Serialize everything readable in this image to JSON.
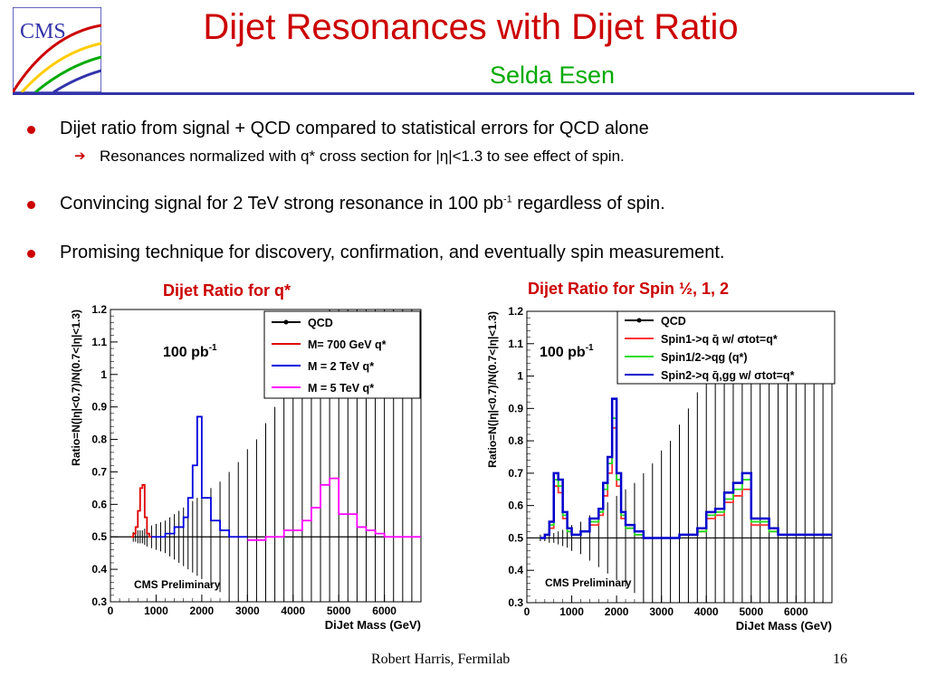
{
  "slide": {
    "logo_text": "CMS",
    "title": "Dijet Resonances with Dijet Ratio",
    "subtitle": "Selda Esen",
    "footer_author": "Robert Harris, Fermilab",
    "page_number": "16"
  },
  "bullets": [
    {
      "text": "Dijet ratio from signal + QCD compared to statistical errors for QCD alone"
    },
    {
      "text_before": "Convincing signal for 2 TeV strong resonance in 100 pb",
      "sup": "-1",
      "text_after": " regardless of spin."
    },
    {
      "text": "Promising technique for discovery, confirmation, and eventually spin measurement."
    }
  ],
  "sub_bullets": [
    {
      "text": "Resonances normalized with q* cross section for |η|<1.3 to see effect of spin."
    }
  ],
  "colors": {
    "title": "#cc0000",
    "subtitle": "#00aa00",
    "rule": "#3333aa",
    "bullet": "#cc0000"
  },
  "chart_data": [
    {
      "type": "line",
      "title": "Dijet Ratio for q*",
      "xlabel": "DiJet Mass (GeV)",
      "ylabel": "Ratio=N(|η|<0.7)/N(0.7<|η|<1.3)",
      "annotation": "100 pb",
      "annotation_sup": "-1",
      "watermark": "CMS Preliminary",
      "xlim": [
        0,
        6800
      ],
      "ylim": [
        0.3,
        1.2
      ],
      "x_ticks": [
        0,
        1000,
        2000,
        3000,
        4000,
        5000,
        6000
      ],
      "y_ticks": [
        0.3,
        0.4,
        0.5,
        0.6,
        0.7,
        0.8,
        0.9,
        1,
        1.1,
        1.2
      ],
      "y_tick_labels": [
        "0.3",
        "0.4",
        "0.5",
        "0.6",
        "0.7",
        "0.8",
        "0.9",
        "1",
        "1.1",
        "1.2"
      ],
      "legend_position": "top-right",
      "qcd": {
        "name": "QCD",
        "color": "#000000",
        "value": 0.5,
        "error_points": [
          [
            500,
            0.015
          ],
          [
            550,
            0.015
          ],
          [
            600,
            0.02
          ],
          [
            650,
            0.02
          ],
          [
            700,
            0.02
          ],
          [
            750,
            0.025
          ],
          [
            800,
            0.03
          ],
          [
            900,
            0.035
          ],
          [
            1000,
            0.04
          ],
          [
            1100,
            0.045
          ],
          [
            1200,
            0.05
          ],
          [
            1300,
            0.06
          ],
          [
            1400,
            0.07
          ],
          [
            1500,
            0.08
          ],
          [
            1600,
            0.09
          ],
          [
            1700,
            0.1
          ],
          [
            1800,
            0.11
          ],
          [
            1900,
            0.12
          ],
          [
            2000,
            0.13
          ],
          [
            2200,
            0.15
          ],
          [
            2400,
            0.17
          ],
          [
            2600,
            0.2
          ],
          [
            2800,
            0.23
          ],
          [
            3000,
            0.27
          ],
          [
            3200,
            0.3
          ],
          [
            3400,
            0.35
          ],
          [
            3600,
            0.4
          ],
          [
            3800,
            0.45
          ],
          [
            4000,
            0.5
          ],
          [
            4200,
            0.55
          ],
          [
            4400,
            0.6
          ],
          [
            4600,
            0.65
          ],
          [
            4800,
            0.7
          ],
          [
            5000,
            0.7
          ],
          [
            5200,
            0.7
          ],
          [
            5400,
            0.7
          ],
          [
            5600,
            0.7
          ],
          [
            5800,
            0.7
          ],
          [
            6000,
            0.7
          ],
          [
            6200,
            0.7
          ],
          [
            6400,
            0.7
          ],
          [
            6600,
            0.7
          ]
        ]
      },
      "series": [
        {
          "name": "M= 700 GeV q*",
          "color": "#dd0000",
          "edges": [
            450,
            500,
            550,
            600,
            650,
            700,
            750,
            800,
            850,
            900
          ],
          "values": [
            0.5,
            0.51,
            0.53,
            0.58,
            0.65,
            0.66,
            0.56,
            0.51,
            0.5
          ]
        },
        {
          "name": "M = 2 TeV q*",
          "color": "#0000dd",
          "edges": [
            900,
            1200,
            1400,
            1600,
            1700,
            1800,
            1900,
            2000,
            2200,
            2400,
            2600,
            2800,
            3000
          ],
          "values": [
            0.5,
            0.51,
            0.53,
            0.56,
            0.62,
            0.72,
            0.87,
            0.62,
            0.55,
            0.52,
            0.5,
            0.5
          ]
        },
        {
          "name": "M = 5 TeV q*",
          "color": "#ff00ff",
          "edges": [
            3000,
            3400,
            3800,
            4000,
            4200,
            4400,
            4600,
            4800,
            5000,
            5400,
            5600,
            5800,
            6000,
            6800
          ],
          "values": [
            0.49,
            0.5,
            0.52,
            0.52,
            0.55,
            0.59,
            0.66,
            0.68,
            0.57,
            0.53,
            0.52,
            0.51,
            0.5
          ]
        }
      ]
    },
    {
      "type": "line",
      "title": "Dijet Ratio for Spin ½, 1, 2",
      "xlabel": "DiJet Mass (GeV)",
      "ylabel": "Ratio=N(|η|<0.7)/N(0.7<|η|<1.3)",
      "annotation": "100 pb",
      "annotation_sup": "-1",
      "watermark": "CMS Preliminary",
      "xlim": [
        0,
        6800
      ],
      "ylim": [
        0.3,
        1.2
      ],
      "x_ticks": [
        0,
        1000,
        2000,
        3000,
        4000,
        5000,
        6000
      ],
      "y_ticks": [
        0.3,
        0.4,
        0.5,
        0.6,
        0.7,
        0.8,
        0.9,
        1,
        1.1,
        1.2
      ],
      "y_tick_labels": [
        "0.3",
        "0.4",
        "0.5",
        "0.6",
        "0.7",
        "0.8",
        "0.9",
        "1",
        "1.1",
        "1.2"
      ],
      "legend_position": "top-right",
      "qcd": {
        "name": "QCD",
        "color": "#000000",
        "value": 0.5,
        "error_points": [
          [
            300,
            0.01
          ],
          [
            400,
            0.01
          ],
          [
            500,
            0.015
          ],
          [
            600,
            0.015
          ],
          [
            700,
            0.02
          ],
          [
            800,
            0.025
          ],
          [
            900,
            0.03
          ],
          [
            1000,
            0.04
          ],
          [
            1200,
            0.05
          ],
          [
            1400,
            0.07
          ],
          [
            1600,
            0.09
          ],
          [
            1800,
            0.11
          ],
          [
            2000,
            0.13
          ],
          [
            2200,
            0.15
          ],
          [
            2400,
            0.17
          ],
          [
            2600,
            0.2
          ],
          [
            2800,
            0.23
          ],
          [
            3000,
            0.27
          ],
          [
            3200,
            0.3
          ],
          [
            3400,
            0.35
          ],
          [
            3600,
            0.4
          ],
          [
            3800,
            0.45
          ],
          [
            4000,
            0.5
          ],
          [
            4200,
            0.55
          ],
          [
            4400,
            0.6
          ],
          [
            4600,
            0.65
          ],
          [
            4800,
            0.7
          ],
          [
            5000,
            0.7
          ],
          [
            5200,
            0.7
          ],
          [
            5400,
            0.7
          ],
          [
            5600,
            0.7
          ],
          [
            5800,
            0.7
          ],
          [
            6000,
            0.7
          ],
          [
            6200,
            0.7
          ],
          [
            6400,
            0.7
          ],
          [
            6600,
            0.7
          ]
        ]
      },
      "series": [
        {
          "name": "Spin1->q q̄ w/ σtot=q*",
          "color": "#ff3333",
          "edges": [
            300,
            400,
            500,
            600,
            700,
            800,
            900,
            1000,
            1200,
            1400,
            1600,
            1700,
            1800,
            1900,
            2000,
            2100,
            2200,
            2400,
            2600,
            3000,
            3400,
            3800,
            4000,
            4200,
            4400,
            4600,
            4800,
            5000,
            5400,
            5600,
            6000,
            6800
          ],
          "values": [
            0.5,
            0.51,
            0.53,
            0.66,
            0.64,
            0.56,
            0.52,
            0.51,
            0.52,
            0.54,
            0.57,
            0.63,
            0.7,
            0.84,
            0.66,
            0.56,
            0.53,
            0.51,
            0.5,
            0.5,
            0.51,
            0.52,
            0.56,
            0.57,
            0.61,
            0.63,
            0.65,
            0.54,
            0.52,
            0.51,
            0.51
          ]
        },
        {
          "name": "Spin1/2->qg (q*)",
          "color": "#22dd22",
          "edges": [
            300,
            400,
            500,
            600,
            700,
            800,
            900,
            1000,
            1200,
            1400,
            1600,
            1700,
            1800,
            1900,
            2000,
            2100,
            2200,
            2400,
            2600,
            3000,
            3400,
            3800,
            4000,
            4200,
            4400,
            4600,
            4800,
            5000,
            5400,
            5600,
            6000,
            6800
          ],
          "values": [
            0.5,
            0.51,
            0.54,
            0.68,
            0.66,
            0.57,
            0.52,
            0.51,
            0.52,
            0.55,
            0.58,
            0.65,
            0.73,
            0.87,
            0.68,
            0.57,
            0.53,
            0.51,
            0.5,
            0.5,
            0.51,
            0.52,
            0.57,
            0.58,
            0.62,
            0.65,
            0.68,
            0.55,
            0.52,
            0.51,
            0.51
          ]
        },
        {
          "name": "Spin2->q q̄,gg w/ σtot=q*",
          "color": "#0000cc",
          "edges": [
            300,
            400,
            500,
            600,
            700,
            800,
            900,
            1000,
            1200,
            1400,
            1600,
            1700,
            1800,
            1900,
            2000,
            2100,
            2200,
            2400,
            2600,
            3000,
            3400,
            3800,
            4000,
            4200,
            4400,
            4600,
            4800,
            5000,
            5400,
            5600,
            6000,
            6800
          ],
          "values": [
            0.5,
            0.51,
            0.55,
            0.7,
            0.68,
            0.58,
            0.53,
            0.51,
            0.52,
            0.56,
            0.59,
            0.67,
            0.75,
            0.93,
            0.7,
            0.58,
            0.54,
            0.52,
            0.5,
            0.5,
            0.51,
            0.53,
            0.58,
            0.59,
            0.64,
            0.67,
            0.7,
            0.56,
            0.53,
            0.51,
            0.51
          ]
        }
      ]
    }
  ]
}
